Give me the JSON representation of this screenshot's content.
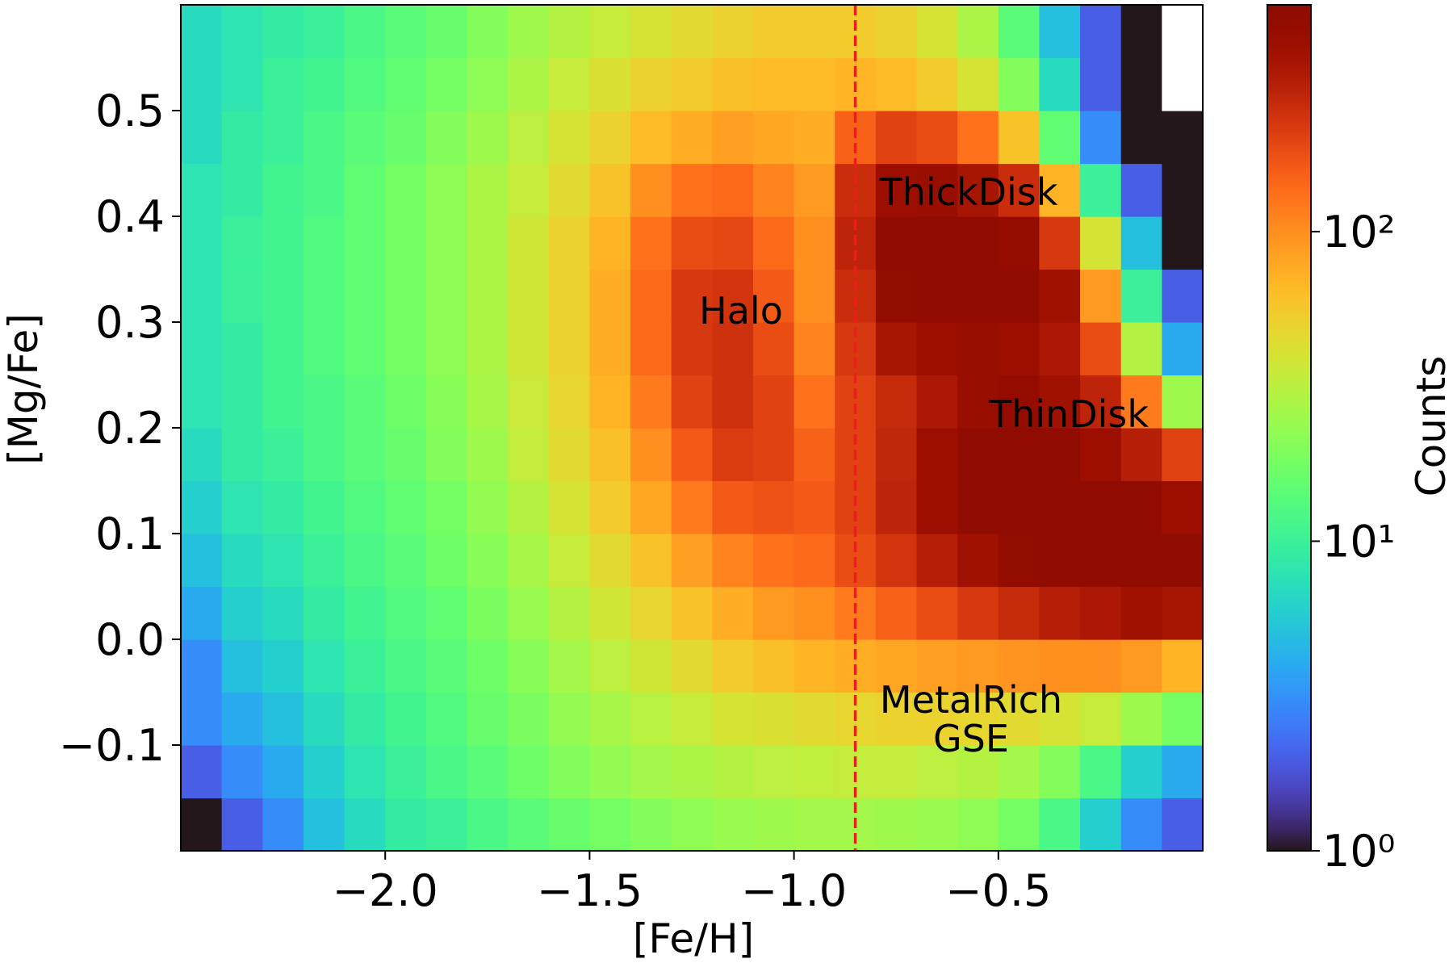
{
  "chart_data": {
    "type": "hist2d",
    "xlabel": "[Fe/H]",
    "ylabel": "[Mg/Fe]",
    "colorbar_label": "Counts",
    "colormap": "turbo",
    "color_scale": "log",
    "clim": [
      1,
      540
    ],
    "cticks": [
      {
        "value": 1,
        "label": "10⁰"
      },
      {
        "value": 10,
        "label": "10¹"
      },
      {
        "value": 100,
        "label": "10²"
      }
    ],
    "xlim": [
      -2.5,
      0.0
    ],
    "ylim": [
      -0.2,
      0.6
    ],
    "xticks": [
      {
        "value": -2.0,
        "label": "−2.0"
      },
      {
        "value": -1.5,
        "label": "−1.5"
      },
      {
        "value": -1.0,
        "label": "−1.0"
      },
      {
        "value": -0.5,
        "label": "−0.5"
      }
    ],
    "yticks": [
      {
        "value": -0.1,
        "label": "−0.1"
      },
      {
        "value": 0.0,
        "label": "0.0"
      },
      0.1,
      0.2,
      0.3,
      0.4,
      0.5
    ],
    "vline": {
      "x": -0.85,
      "color": "#e8201a",
      "style": "dashed"
    },
    "annotations": [
      "Halo",
      "ThickDisk",
      "ThinDisk",
      [
        "MetalRich",
        "GSE"
      ]
    ],
    "xbins": [
      -2.5,
      -2.4,
      -2.3,
      -2.2,
      -2.1,
      -2.0,
      -1.9,
      -1.8,
      -1.7,
      -1.6,
      -1.5,
      -1.4,
      -1.3,
      -1.2,
      -1.1,
      -1.0,
      -0.9,
      -0.8,
      -0.7,
      -0.6,
      -0.5,
      -0.4,
      -0.3,
      -0.2,
      -0.1,
      0.0
    ],
    "ybins": [
      -0.2,
      -0.15,
      -0.1,
      -0.05,
      0.0,
      0.05,
      0.1,
      0.15,
      0.2,
      0.25,
      0.3,
      0.35,
      0.4,
      0.45,
      0.5,
      0.55,
      0.6
    ],
    "counts": [
      [
        1,
        2,
        3,
        5,
        7,
        9,
        10,
        12,
        14,
        16,
        18,
        20,
        22,
        24,
        25,
        26,
        26,
        25,
        24,
        22,
        18,
        12,
        6,
        3,
        2
      ],
      [
        2,
        3,
        4,
        6,
        8,
        10,
        12,
        14,
        17,
        20,
        23,
        26,
        28,
        30,
        32,
        33,
        34,
        34,
        32,
        30,
        26,
        20,
        12,
        6,
        4
      ],
      [
        3,
        4,
        5,
        7,
        9,
        11,
        13,
        16,
        19,
        23,
        27,
        31,
        35,
        40,
        42,
        45,
        48,
        50,
        50,
        48,
        45,
        40,
        35,
        25,
        18
      ],
      [
        3,
        5,
        6,
        8,
        10,
        12,
        14,
        17,
        21,
        26,
        32,
        38,
        45,
        55,
        62,
        70,
        75,
        80,
        85,
        90,
        95,
        100,
        100,
        90,
        70
      ],
      [
        4,
        6,
        7,
        9,
        11,
        13,
        15,
        19,
        24,
        30,
        38,
        48,
        60,
        75,
        90,
        100,
        120,
        150,
        180,
        220,
        260,
        300,
        330,
        380,
        350
      ],
      [
        5,
        7,
        8,
        10,
        12,
        14,
        17,
        21,
        27,
        35,
        45,
        60,
        85,
        110,
        130,
        140,
        180,
        230,
        300,
        380,
        480,
        540,
        540,
        540,
        540
      ],
      [
        6,
        8,
        9,
        11,
        13,
        15,
        18,
        23,
        30,
        40,
        55,
        80,
        120,
        160,
        170,
        160,
        200,
        280,
        400,
        540,
        540,
        540,
        540,
        500,
        400
      ],
      [
        7,
        9,
        10,
        12,
        14,
        16,
        20,
        25,
        34,
        45,
        62,
        100,
        160,
        210,
        200,
        150,
        200,
        270,
        400,
        540,
        540,
        500,
        400,
        300,
        200
      ],
      [
        8,
        9,
        11,
        12,
        14,
        17,
        21,
        27,
        36,
        48,
        70,
        120,
        200,
        240,
        200,
        130,
        200,
        260,
        330,
        420,
        450,
        380,
        280,
        120,
        25
      ],
      [
        8,
        9,
        11,
        13,
        15,
        18,
        22,
        28,
        38,
        50,
        75,
        140,
        220,
        240,
        180,
        110,
        220,
        350,
        400,
        420,
        400,
        330,
        180,
        30,
        4
      ],
      [
        8,
        10,
        11,
        13,
        15,
        18,
        22,
        28,
        38,
        50,
        75,
        140,
        220,
        230,
        160,
        100,
        250,
        480,
        540,
        540,
        540,
        380,
        90,
        10,
        2
      ],
      [
        8,
        10,
        11,
        13,
        15,
        18,
        22,
        28,
        38,
        50,
        70,
        130,
        180,
        190,
        140,
        100,
        280,
        500,
        540,
        540,
        450,
        220,
        40,
        5,
        1
      ],
      [
        8,
        9,
        11,
        12,
        15,
        18,
        22,
        28,
        35,
        45,
        60,
        100,
        130,
        140,
        110,
        90,
        250,
        400,
        420,
        350,
        250,
        70,
        10,
        2,
        1
      ],
      [
        7,
        9,
        10,
        12,
        14,
        16,
        20,
        25,
        32,
        40,
        50,
        65,
        75,
        85,
        80,
        75,
        150,
        200,
        180,
        130,
        60,
        15,
        3,
        1,
        1
      ],
      [
        7,
        8,
        10,
        11,
        13,
        15,
        18,
        22,
        28,
        35,
        42,
        50,
        55,
        62,
        65,
        65,
        70,
        65,
        55,
        40,
        20,
        7,
        2,
        1,
        0
      ],
      [
        7,
        8,
        9,
        10,
        12,
        14,
        16,
        20,
        25,
        30,
        35,
        40,
        45,
        50,
        55,
        55,
        55,
        50,
        40,
        28,
        14,
        5,
        2,
        1,
        0
      ]
    ]
  }
}
